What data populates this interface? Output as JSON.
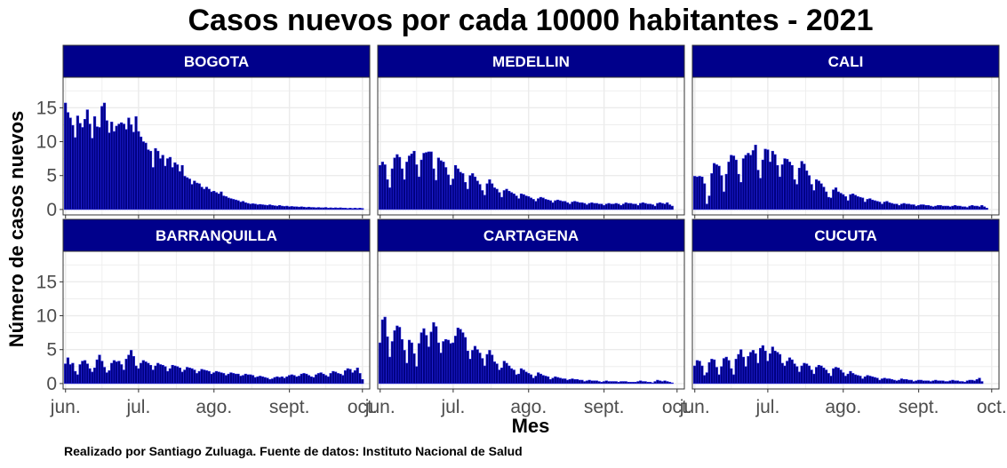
{
  "chart_data": {
    "type": "bar",
    "title": "Casos nuevos por cada 10000 habitantes - 2021",
    "xlabel": "Mes",
    "ylabel": "Número de casos nuevos",
    "caption": "Realizado por Santiago Zuluaga. Fuente de datos: Instituto Nacional de Salud",
    "x_range": [
      "2021-05-31",
      "2021-10-04"
    ],
    "ylim": [
      -0.8,
      19.5
    ],
    "y_ticks": [
      0,
      5,
      10,
      15
    ],
    "x_ticks": [
      {
        "date": "2021-06-01",
        "label": "jun."
      },
      {
        "date": "2021-07-01",
        "label": "jul."
      },
      {
        "date": "2021-08-01",
        "label": "ago."
      },
      {
        "date": "2021-09-01",
        "label": "sept."
      },
      {
        "date": "2021-10-01",
        "label": "oct."
      }
    ],
    "grid": true,
    "bar_fill": "#000080",
    "bar_stroke": "#2222dd",
    "strip_fill": "#00008B",
    "panel_border": "#333333",
    "grid_color": "#ebebeb",
    "panels": [
      {
        "name": "BOGOTA",
        "start_date": "2021-06-01",
        "values": [
          15.7,
          14.3,
          13.5,
          12.4,
          10.6,
          13.8,
          12.7,
          12.1,
          13.3,
          14.7,
          12.6,
          10.5,
          13.7,
          12.2,
          12.1,
          15.2,
          15.7,
          13.1,
          11.3,
          12.9,
          11.5,
          12.3,
          12.6,
          12.8,
          12.6,
          11.8,
          13.5,
          12.5,
          11.4,
          13.7,
          11.5,
          10.7,
          10.0,
          9.8,
          8.8,
          8.6,
          6.2,
          9.0,
          8.6,
          7.5,
          8.0,
          6.4,
          7.5,
          7.7,
          6.2,
          6.9,
          6.6,
          5.6,
          6.5,
          4.9,
          4.7,
          4.5,
          3.7,
          4.2,
          3.9,
          3.8,
          3.3,
          3.0,
          3.3,
          3.0,
          2.6,
          2.7,
          2.5,
          2.3,
          2.6,
          2.0,
          1.9,
          1.7,
          1.6,
          1.5,
          1.4,
          1.3,
          1.1,
          1.2,
          1.0,
          0.9,
          0.8,
          0.85,
          0.8,
          0.7,
          0.75,
          0.7,
          0.65,
          0.6,
          0.7,
          0.6,
          0.55,
          0.5,
          0.6,
          0.5,
          0.45,
          0.5,
          0.4,
          0.45,
          0.4,
          0.4,
          0.35,
          0.4,
          0.35,
          0.3,
          0.35,
          0.3,
          0.3,
          0.25,
          0.3,
          0.25,
          0.25,
          0.3,
          0.2,
          0.25,
          0.2,
          0.25,
          0.2,
          0.25,
          0.2,
          0.2,
          0.15,
          0.2,
          0.15,
          0.2,
          0.15,
          0.2,
          0.15
        ]
      },
      {
        "name": "MEDELLIN",
        "start_date": "2021-06-01",
        "values": [
          6.5,
          7.0,
          6.6,
          4.4,
          3.2,
          6.0,
          7.6,
          8.1,
          7.7,
          6.0,
          4.4,
          7.0,
          7.9,
          8.2,
          8.6,
          6.6,
          4.8,
          7.3,
          8.3,
          8.4,
          8.5,
          8.5,
          6.0,
          4.3,
          7.6,
          7.2,
          7.0,
          6.2,
          5.1,
          3.6,
          4.5,
          6.5,
          6.0,
          5.5,
          5.3,
          4.0,
          3.0,
          5.0,
          5.3,
          4.8,
          4.2,
          3.7,
          2.8,
          2.1,
          3.8,
          4.4,
          3.8,
          3.2,
          3.0,
          2.5,
          1.8,
          2.8,
          3.0,
          2.7,
          2.5,
          2.3,
          2.0,
          1.6,
          2.3,
          2.2,
          2.0,
          1.9,
          1.7,
          1.5,
          1.2,
          1.6,
          1.8,
          1.7,
          1.5,
          1.4,
          1.3,
          1.0,
          1.3,
          1.4,
          1.3,
          1.2,
          1.2,
          1.0,
          0.8,
          1.1,
          1.2,
          1.1,
          1.0,
          1.0,
          0.9,
          0.7,
          0.9,
          1.0,
          0.9,
          0.9,
          0.8,
          0.8,
          0.6,
          0.8,
          0.9,
          0.8,
          0.8,
          0.9,
          0.8,
          0.6,
          0.8,
          1.0,
          0.9,
          0.9,
          0.8,
          0.8,
          0.6,
          0.9,
          1.0,
          0.9,
          0.8,
          0.8,
          0.7,
          0.5,
          0.9,
          1.0,
          0.9,
          0.8,
          1.0,
          0.7,
          0.5
        ]
      },
      {
        "name": "CALI",
        "start_date": "2021-06-01",
        "values": [
          4.9,
          4.8,
          4.9,
          4.8,
          3.8,
          0.8,
          2.0,
          5.3,
          6.8,
          6.6,
          6.4,
          5.0,
          2.6,
          5.2,
          7.0,
          8.0,
          7.9,
          7.3,
          5.2,
          4.0,
          7.5,
          8.0,
          8.3,
          8.0,
          8.7,
          9.5,
          5.8,
          4.6,
          7.3,
          8.9,
          8.8,
          7.0,
          8.6,
          8.1,
          6.5,
          4.8,
          6.6,
          7.5,
          7.4,
          7.0,
          6.5,
          4.4,
          3.7,
          6.1,
          7.1,
          6.7,
          5.7,
          5.0,
          3.7,
          2.8,
          4.4,
          4.2,
          3.8,
          3.3,
          2.6,
          1.8,
          1.7,
          2.9,
          3.2,
          2.6,
          2.4,
          2.2,
          1.9,
          1.3,
          2.2,
          2.3,
          2.1,
          1.9,
          1.8,
          1.7,
          1.1,
          1.5,
          1.6,
          1.4,
          1.3,
          1.2,
          1.1,
          0.8,
          1.1,
          1.2,
          1.0,
          0.9,
          0.8,
          0.8,
          0.6,
          0.8,
          0.9,
          0.8,
          0.8,
          0.7,
          0.7,
          0.5,
          0.6,
          0.7,
          0.7,
          0.6,
          0.6,
          0.5,
          0.4,
          0.5,
          0.6,
          0.6,
          0.5,
          0.5,
          0.5,
          0.4,
          0.5,
          0.6,
          0.5,
          0.5,
          0.4,
          0.4,
          0.3,
          0.5,
          0.6,
          0.5,
          0.5,
          0.4,
          0.6,
          0.4,
          0.2
        ]
      },
      {
        "name": "BARRANQUILLA",
        "start_date": "2021-06-01",
        "values": [
          2.9,
          3.8,
          2.8,
          3.0,
          1.8,
          1.3,
          2.8,
          3.3,
          3.4,
          2.9,
          2.2,
          1.7,
          2.3,
          3.5,
          4.2,
          3.3,
          2.4,
          1.6,
          1.9,
          3.0,
          3.4,
          3.2,
          3.3,
          2.8,
          2.0,
          3.6,
          4.2,
          4.9,
          4.0,
          2.6,
          2.2,
          3.0,
          3.4,
          3.2,
          3.0,
          2.7,
          2.0,
          2.6,
          3.0,
          2.8,
          2.7,
          2.5,
          1.8,
          2.2,
          2.7,
          2.6,
          2.5,
          2.3,
          1.7,
          2.0,
          2.4,
          2.3,
          2.2,
          2.0,
          1.5,
          1.8,
          2.1,
          2.0,
          1.9,
          1.8,
          1.4,
          1.6,
          1.8,
          1.7,
          1.6,
          1.5,
          1.2,
          1.4,
          1.6,
          1.5,
          1.4,
          1.4,
          1.1,
          1.2,
          1.4,
          1.3,
          1.3,
          1.2,
          0.9,
          1.0,
          1.1,
          1.0,
          0.9,
          0.8,
          0.6,
          0.7,
          0.9,
          1.0,
          0.9,
          1.0,
          0.8,
          1.0,
          1.2,
          1.3,
          1.2,
          1.0,
          1.1,
          1.4,
          1.5,
          1.4,
          1.2,
          1.0,
          0.9,
          1.3,
          1.5,
          1.6,
          1.4,
          1.2,
          1.0,
          1.5,
          1.8,
          1.7,
          1.5,
          1.4,
          1.2,
          1.9,
          2.2,
          2.1,
          1.6,
          1.9,
          2.3,
          1.5,
          0.6
        ]
      },
      {
        "name": "CARTAGENA",
        "start_date": "2021-06-01",
        "values": [
          6.0,
          9.4,
          9.8,
          6.9,
          3.9,
          6.2,
          7.8,
          8.5,
          8.3,
          6.5,
          4.9,
          3.0,
          6.4,
          6.0,
          4.4,
          2.5,
          5.9,
          7.5,
          8.1,
          7.1,
          5.4,
          7.6,
          9.0,
          8.4,
          6.0,
          4.5,
          6.2,
          6.5,
          6.4,
          5.9,
          6.0,
          7.0,
          8.2,
          8.0,
          7.5,
          6.8,
          4.8,
          3.6,
          4.9,
          5.5,
          5.0,
          4.5,
          3.7,
          2.6,
          4.3,
          4.9,
          4.2,
          3.2,
          2.9,
          2.0,
          2.3,
          3.3,
          3.0,
          2.6,
          2.2,
          2.0,
          1.3,
          1.4,
          2.2,
          2.0,
          1.7,
          1.5,
          1.3,
          0.8,
          1.1,
          1.6,
          1.4,
          1.2,
          1.1,
          1.0,
          0.6,
          0.8,
          1.0,
          0.9,
          0.8,
          0.7,
          0.7,
          0.5,
          0.6,
          0.7,
          0.6,
          0.6,
          0.5,
          0.5,
          0.3,
          0.4,
          0.5,
          0.4,
          0.4,
          0.4,
          0.3,
          0.2,
          0.3,
          0.4,
          0.3,
          0.3,
          0.3,
          0.3,
          0.2,
          0.3,
          0.3,
          0.3,
          0.2,
          0.2,
          0.2,
          0.2,
          0.3,
          0.4,
          0.3,
          0.3,
          0.2,
          0.2,
          0.1,
          0.3,
          0.5,
          0.4,
          0.3,
          0.4,
          0.3,
          0.2,
          0.1
        ]
      },
      {
        "name": "CUCUTA",
        "start_date": "2021-06-01",
        "values": [
          2.6,
          3.4,
          3.3,
          2.6,
          1.2,
          1.6,
          3.1,
          3.6,
          3.5,
          2.4,
          1.3,
          2.5,
          3.7,
          3.9,
          3.4,
          2.2,
          1.3,
          3.6,
          4.3,
          5.0,
          3.9,
          2.5,
          4.0,
          4.6,
          4.9,
          4.4,
          3.0,
          5.2,
          5.6,
          4.8,
          3.3,
          4.4,
          5.4,
          4.8,
          4.6,
          4.3,
          3.0,
          2.6,
          3.3,
          3.8,
          3.5,
          2.9,
          2.5,
          1.7,
          2.6,
          3.0,
          2.9,
          2.6,
          2.0,
          1.4,
          2.4,
          2.7,
          2.6,
          2.3,
          2.0,
          1.5,
          1.1,
          2.2,
          2.4,
          2.3,
          2.0,
          1.6,
          1.1,
          1.4,
          1.8,
          1.5,
          1.3,
          1.2,
          1.1,
          0.7,
          1.0,
          1.2,
          1.1,
          1.0,
          0.9,
          0.8,
          0.5,
          0.7,
          0.8,
          0.7,
          0.7,
          0.6,
          0.5,
          0.4,
          0.5,
          0.7,
          0.6,
          0.6,
          0.5,
          0.5,
          0.3,
          0.4,
          0.5,
          0.5,
          0.4,
          0.4,
          0.4,
          0.3,
          0.4,
          0.5,
          0.4,
          0.4,
          0.4,
          0.3,
          0.3,
          0.4,
          0.5,
          0.4,
          0.4,
          0.3,
          0.3,
          0.2,
          0.4,
          0.5,
          0.5,
          0.4,
          0.6,
          0.8,
          0.3
        ]
      }
    ]
  }
}
